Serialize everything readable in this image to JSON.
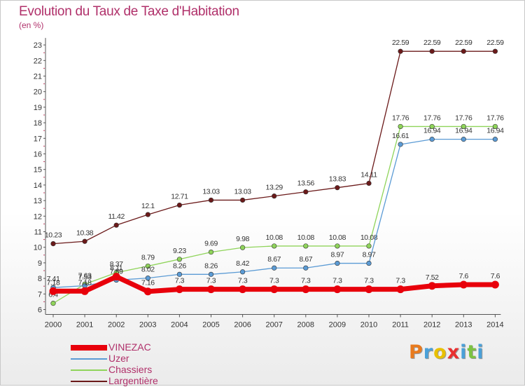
{
  "chart_data": {
    "type": "line",
    "title": "Evolution du Taux de Taxe d'Habitation",
    "subtitle": "(en %)",
    "categories": [
      "2000",
      "2001",
      "2002",
      "2003",
      "2004",
      "2005",
      "2006",
      "2007",
      "2008",
      "2009",
      "2010",
      "2011",
      "2012",
      "2013",
      "2014"
    ],
    "ylim": [
      6,
      23
    ],
    "y_ticks": [
      "6",
      "7",
      "8",
      "9",
      "10",
      "11",
      "12",
      "13",
      "14",
      "15",
      "16",
      "17",
      "18",
      "19",
      "20",
      "21",
      "22",
      "23"
    ],
    "grid": false,
    "legend_position": "bottom-left",
    "series": [
      {
        "name": "Largentière",
        "color": "#6b1a1a",
        "values": [
          10.23,
          10.38,
          11.42,
          12.1,
          12.71,
          13.03,
          13.03,
          13.29,
          13.56,
          13.83,
          14.11,
          22.59,
          22.59,
          22.59,
          22.59
        ],
        "labels": [
          "10.23",
          "10.38",
          "11.42",
          "12.1",
          "12.71",
          "13.03",
          "13.03",
          "13.29",
          "13.56",
          "13.83",
          "14.11",
          "22.59",
          "22.59",
          "22.59",
          "22.59"
        ]
      },
      {
        "name": "Chassiers",
        "color": "#8fd45a",
        "values": [
          6.4,
          7.63,
          8.37,
          8.79,
          9.23,
          9.69,
          9.98,
          10.08,
          10.08,
          10.08,
          10.08,
          17.76,
          17.76,
          17.76,
          17.76
        ],
        "labels": [
          "6.4",
          "7.63",
          "8.37",
          "8.79",
          "9.23",
          "9.69",
          "9.98",
          "10.08",
          "10.08",
          "10.08",
          "10.08",
          "17.76",
          "17.76",
          "17.76",
          "17.76"
        ]
      },
      {
        "name": "Uzer",
        "color": "#5b9bd5",
        "values": [
          7.41,
          7.53,
          7.89,
          8.02,
          8.26,
          8.26,
          8.42,
          8.67,
          8.67,
          8.97,
          8.97,
          16.61,
          16.94,
          16.94,
          16.94
        ],
        "labels": [
          "7.41",
          "7.53",
          "7.89",
          "8.02",
          "8.26",
          "8.26",
          "8.42",
          "8.67",
          "8.67",
          "8.97",
          "8.97",
          "16.61",
          "16.94",
          "16.94",
          "16.94"
        ]
      },
      {
        "name": "VINEZAC",
        "color": "#e8000b",
        "values": [
          7.18,
          7.18,
          8.11,
          7.16,
          7.3,
          7.3,
          7.3,
          7.3,
          7.3,
          7.3,
          7.3,
          7.3,
          7.52,
          7.6,
          7.6
        ],
        "labels": [
          "7.18",
          "7.18",
          "8.11",
          "7.16",
          "7.3",
          "7.3",
          "7.3",
          "7.3",
          "7.3",
          "7.3",
          "7.3",
          "7.3",
          "7.52",
          "7.6",
          "7.6"
        ]
      }
    ],
    "legend": [
      "VINEZAC",
      "Uzer",
      "Chassiers",
      "Largentière"
    ]
  },
  "logo": {
    "letters": [
      "P",
      "r",
      "o",
      "x",
      "i",
      "t",
      "i"
    ],
    "colors": [
      "#e87a1e",
      "#4aa0d8",
      "#e8c000",
      "#e83030",
      "#4aa0d8",
      "#7cc242",
      "#4aa0d8"
    ]
  }
}
